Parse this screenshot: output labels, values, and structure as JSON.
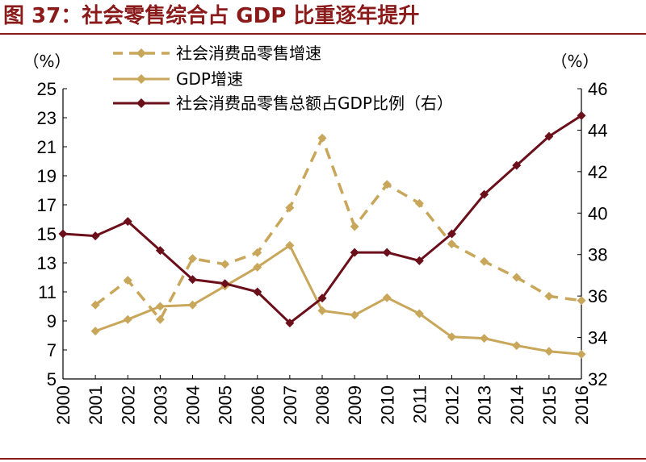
{
  "title": "图 37：社会零售综合占 GDP 比重逐年提升",
  "colors": {
    "title": "#8b1a1a",
    "gold": "#c8a65a",
    "maroon": "#6b0f1a"
  },
  "chart_data": {
    "type": "line",
    "x": [
      "2000",
      "2001",
      "2002",
      "2003",
      "2004",
      "2005",
      "2006",
      "2007",
      "2008",
      "2009",
      "2010",
      "2011",
      "2012",
      "2013",
      "2014",
      "2015",
      "2016"
    ],
    "left_axis": {
      "unit": "（%）",
      "ylim": [
        5,
        25
      ],
      "ticks": [
        5,
        7,
        9,
        11,
        13,
        15,
        17,
        19,
        21,
        23,
        25
      ]
    },
    "right_axis": {
      "unit": "（%）",
      "ylim": [
        32,
        46
      ],
      "ticks": [
        32,
        34,
        36,
        38,
        40,
        42,
        44,
        46
      ]
    },
    "legend_position": "top-center",
    "series": [
      {
        "name": "社会消费品零售增速",
        "axis": "left",
        "style": "dashed",
        "color": "#c8a65a",
        "values": [
          null,
          10.1,
          11.8,
          9.1,
          13.3,
          12.9,
          13.7,
          16.8,
          21.6,
          15.5,
          18.4,
          17.1,
          14.3,
          13.1,
          12.0,
          10.7,
          10.4
        ]
      },
      {
        "name": "GDP增速",
        "axis": "left",
        "style": "solid",
        "color": "#c8a65a",
        "values": [
          null,
          8.3,
          9.1,
          10.0,
          10.1,
          11.4,
          12.7,
          14.2,
          9.7,
          9.4,
          10.6,
          9.5,
          7.9,
          7.8,
          7.3,
          6.9,
          6.7
        ]
      },
      {
        "name": "社会消费品零售总额占GDP比例（右）",
        "axis": "right",
        "style": "solid",
        "color": "#6b0f1a",
        "values": [
          39.0,
          38.9,
          39.6,
          38.2,
          36.8,
          36.6,
          36.2,
          34.7,
          35.9,
          38.1,
          38.1,
          37.7,
          39.0,
          40.9,
          42.3,
          43.7,
          44.7
        ]
      }
    ]
  }
}
